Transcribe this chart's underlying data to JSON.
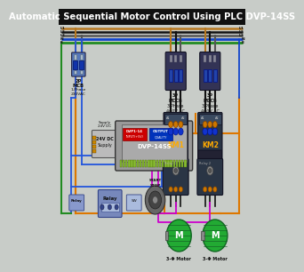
{
  "title": "Automatic Sequential Motor Control Using PLC DVP-14SS",
  "title_fontsize": 7.2,
  "title_bg": "#111111",
  "title_fg": "#ffffff",
  "bg_color": "#c8ccc8",
  "wire_L1_color": "#b87820",
  "wire_L2_color": "#111111",
  "wire_L3_color": "#555555",
  "wire_N_color": "#1144cc",
  "wire_E_color": "#228B22",
  "wire_orange": "#dd7700",
  "wire_blue": "#2255dd",
  "wire_magenta": "#cc00cc",
  "wire_brown": "#8B4513"
}
